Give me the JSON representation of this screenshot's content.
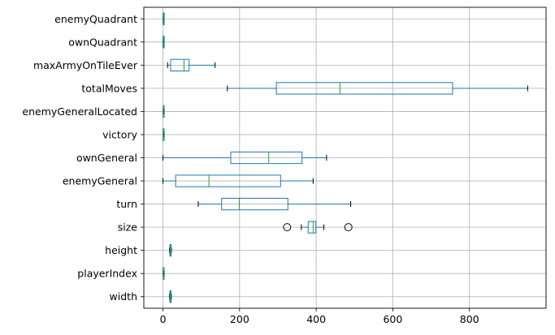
{
  "chart_data": {
    "type": "boxplot",
    "orientation": "horizontal",
    "grid": true,
    "xlim": [
      -50,
      1000
    ],
    "xticks": [
      0,
      200,
      400,
      600,
      800
    ],
    "box_color": "#1f77b4",
    "median_color": "#2ca02c",
    "series": [
      {
        "name": "enemyQuadrant",
        "whisker_low": 0,
        "q1": 0,
        "median": 1,
        "q3": 2,
        "whisker_high": 3,
        "outliers": []
      },
      {
        "name": "ownQuadrant",
        "whisker_low": 0,
        "q1": 0,
        "median": 1,
        "q3": 2,
        "whisker_high": 3,
        "outliers": []
      },
      {
        "name": "maxArmyOnTileEver",
        "whisker_low": 12,
        "q1": 20,
        "median": 55,
        "q3": 68,
        "whisker_high": 136,
        "outliers": []
      },
      {
        "name": "totalMoves",
        "whisker_low": 168,
        "q1": 296,
        "median": 462,
        "q3": 756,
        "whisker_high": 952,
        "outliers": []
      },
      {
        "name": "enemyGeneralLocated",
        "whisker_low": 0,
        "q1": 0,
        "median": 0,
        "q3": 1,
        "whisker_high": 1,
        "outliers": []
      },
      {
        "name": "victory",
        "whisker_low": 0,
        "q1": 0,
        "median": 0,
        "q3": 1,
        "whisker_high": 1,
        "outliers": []
      },
      {
        "name": "ownGeneral",
        "whisker_low": 0,
        "q1": 177,
        "median": 276,
        "q3": 363,
        "whisker_high": 427,
        "outliers": []
      },
      {
        "name": "enemyGeneral",
        "whisker_low": 0,
        "q1": 33,
        "median": 120,
        "q3": 307,
        "whisker_high": 392,
        "outliers": []
      },
      {
        "name": "turn",
        "whisker_low": 92,
        "q1": 153,
        "median": 199,
        "q3": 326,
        "whisker_high": 490,
        "outliers": []
      },
      {
        "name": "size",
        "whisker_low": 361,
        "q1": 379,
        "median": 392,
        "q3": 399,
        "whisker_high": 420,
        "outliers": [
          324,
          484
        ]
      },
      {
        "name": "height",
        "whisker_low": 17,
        "q1": 18,
        "median": 19,
        "q3": 21,
        "whisker_high": 22,
        "outliers": []
      },
      {
        "name": "playerIndex",
        "whisker_low": 0,
        "q1": 0,
        "median": 0,
        "q3": 1,
        "whisker_high": 1,
        "outliers": []
      },
      {
        "name": "width",
        "whisker_low": 17,
        "q1": 18,
        "median": 19,
        "q3": 21,
        "whisker_high": 22,
        "outliers": []
      }
    ]
  }
}
